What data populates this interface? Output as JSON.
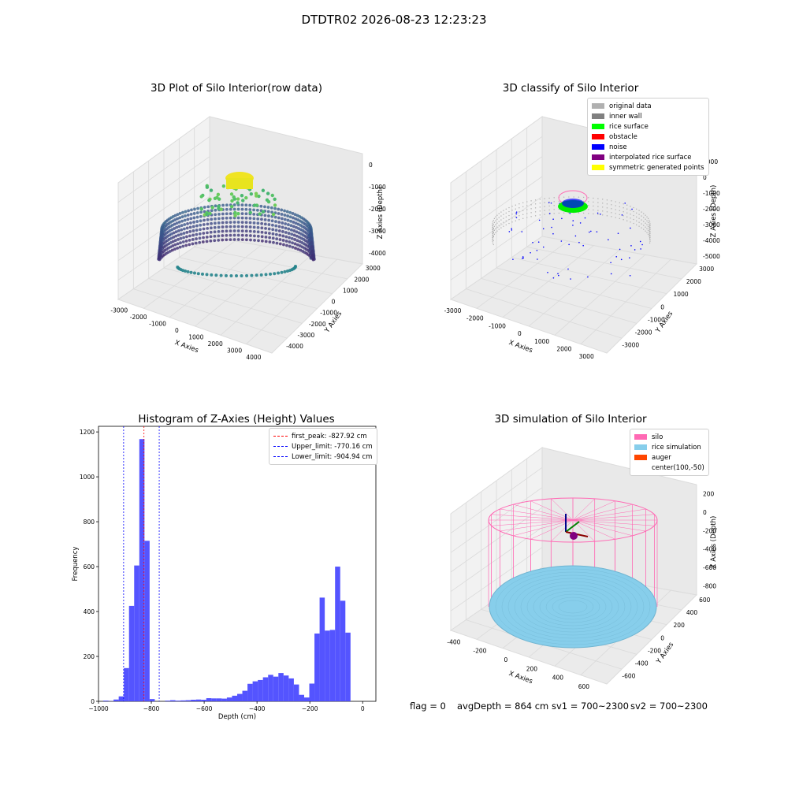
{
  "suptitle": "DTDTR02 2026-08-23 12:23:23",
  "panels": {
    "raw": {
      "title": "3D Plot of Silo Interior(row data)",
      "xlabel": "X Axies",
      "ylabel": "Y Axies",
      "zlabel": "Z Axies (Depth)",
      "xticks": [
        "-3000",
        "-2000",
        "-1000",
        "0",
        "1000",
        "2000",
        "3000",
        "4000"
      ],
      "yticks": [
        "3000",
        "2000",
        "1000",
        "0",
        "-1000",
        "-2000",
        "-3000",
        "-4000"
      ],
      "zticks": [
        "0",
        "-1000",
        "-2000",
        "-3000",
        "-4000"
      ]
    },
    "classify": {
      "title": "3D classify of Silo Interior",
      "xlabel": "X Axies",
      "ylabel": "Y Axies",
      "zlabel": "Z Axies (Depth)",
      "xticks": [
        "-3000",
        "-2000",
        "-1000",
        "0",
        "1000",
        "2000",
        "3000"
      ],
      "yticks": [
        "3000",
        "2000",
        "1000",
        "0",
        "-1000",
        "-2000",
        "-3000"
      ],
      "zticks": [
        "1000",
        "0",
        "-1000",
        "-2000",
        "-3000",
        "-4000",
        "-5000"
      ],
      "legend": [
        {
          "label": "original data",
          "color": "#b0b0b0"
        },
        {
          "label": "inner wall",
          "color": "#808080"
        },
        {
          "label": "rice surface",
          "color": "#00ff00"
        },
        {
          "label": "obstacle",
          "color": "#ff0000"
        },
        {
          "label": "noise",
          "color": "#0000ff"
        },
        {
          "label": "interpolated rice surface",
          "color": "#800080"
        },
        {
          "label": "symmetric generated points",
          "color": "#ffff00"
        }
      ]
    },
    "simulation": {
      "title": "3D simulation of Silo Interior",
      "xlabel": "X Axies",
      "ylabel": "Y Axies",
      "zlabel": "Z Axies (Depth)",
      "xticks": [
        "-400",
        "-200",
        "0",
        "200",
        "400",
        "600"
      ],
      "yticks": [
        "600",
        "400",
        "200",
        "0",
        "-200",
        "-400",
        "-600"
      ],
      "zticks": [
        "200",
        "0",
        "-200",
        "-400",
        "-600",
        "-800"
      ],
      "legend": [
        {
          "label": "silo",
          "color": "#ff69b4"
        },
        {
          "label": "rice simulation",
          "color": "#87ceeb"
        },
        {
          "label": "auger",
          "color": "#ff4500"
        },
        {
          "label": "center(100,-50)",
          "color": ""
        }
      ]
    }
  },
  "footer": {
    "flag": "flag = 0",
    "avg_depth": "avgDepth = 864 cm",
    "sv1": "sv1 = 700~2300",
    "sv2": "sv2 = 700~2300"
  },
  "chart_data": [
    {
      "type": "scatter",
      "title": "3D Plot of Silo Interior(row data)",
      "xlabel": "X Axies",
      "ylabel": "Y Axies",
      "zlabel": "Z Axies (Depth)",
      "xlim": [
        -3500,
        4000
      ],
      "ylim": [
        -4000,
        3500
      ],
      "zlim": [
        -4500,
        300
      ],
      "colormap": "viridis",
      "description_points": "point cloud of silo inner wall and rice surface"
    },
    {
      "type": "scatter",
      "title": "3D classify of Silo Interior",
      "xlabel": "X Axies",
      "ylabel": "Y Axies",
      "zlabel": "Z Axies (Depth)",
      "xlim": [
        -3500,
        3500
      ],
      "ylim": [
        -3500,
        3500
      ],
      "zlim": [
        -5500,
        1000
      ],
      "series": [
        {
          "name": "original data"
        },
        {
          "name": "inner wall"
        },
        {
          "name": "rice surface"
        },
        {
          "name": "obstacle"
        },
        {
          "name": "noise"
        },
        {
          "name": "interpolated rice surface"
        },
        {
          "name": "symmetric generated points"
        }
      ]
    },
    {
      "type": "bar",
      "title": "Histogram of Z-Axies (Height) Values",
      "xlabel": "Depth (cm)",
      "ylabel": "Frequency",
      "xlim": [
        -1000,
        50
      ],
      "ylim": [
        0,
        1225
      ],
      "xticks": [
        -1000,
        -800,
        -600,
        -400,
        -200,
        0
      ],
      "yticks": [
        0,
        200,
        400,
        600,
        800,
        1000,
        1200
      ],
      "bin_width": 19.5,
      "bin_start": -982,
      "values": [
        3,
        1,
        8,
        22,
        148,
        425,
        605,
        1168,
        715,
        10,
        0,
        0,
        3,
        5,
        3,
        4,
        5,
        7,
        8,
        7,
        14,
        13,
        13,
        12,
        17,
        25,
        33,
        47,
        78,
        89,
        95,
        107,
        118,
        110,
        126,
        115,
        102,
        75,
        29,
        17,
        79,
        302,
        462,
        315,
        318,
        600,
        448,
        306
      ],
      "vlines": [
        {
          "label": "first_peak: -827.92 cm",
          "x": -827.92,
          "color": "#ff0000"
        },
        {
          "label": "Upper_limit: -770.16 cm",
          "x": -770.16,
          "color": "#0000ff"
        },
        {
          "label": "Lower_limit: -904.94 cm",
          "x": -904.94,
          "color": "#0000ff"
        }
      ],
      "bar_color": "#4b4bff"
    },
    {
      "type": "scatter",
      "title": "3D simulation of Silo Interior",
      "xlabel": "X Axies",
      "ylabel": "Y Axies",
      "zlabel": "Z Axies (Depth)",
      "xlim": [
        -500,
        700
      ],
      "ylim": [
        -700,
        700
      ],
      "zlim": [
        -900,
        300
      ],
      "series": [
        {
          "name": "silo"
        },
        {
          "name": "rice simulation"
        },
        {
          "name": "auger"
        },
        {
          "name": "center(100,-50)"
        }
      ]
    }
  ]
}
